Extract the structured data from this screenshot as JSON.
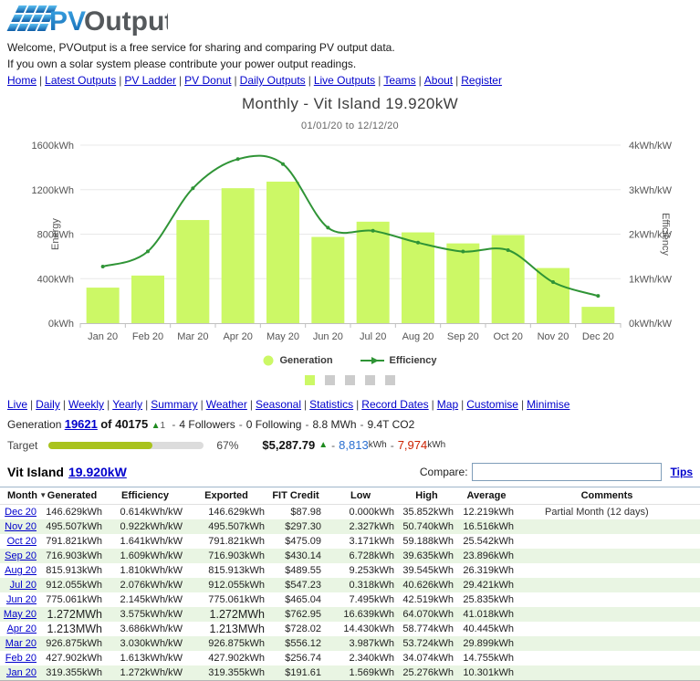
{
  "header": {
    "logo": {
      "icon": "solar-panel-icon",
      "pv": "PV",
      "output": "Output"
    },
    "welcome_line1": "Welcome, PVOutput is a free service for sharing and comparing PV output data.",
    "welcome_line2": "If you own a solar system please contribute your power output readings.",
    "nav": [
      "Home",
      "Latest Outputs",
      "PV Ladder",
      "PV Donut",
      "Daily Outputs",
      "Live Outputs",
      "Teams",
      "About",
      "Register"
    ],
    "nav_separator": "|"
  },
  "chart": {
    "title": "Monthly - Vit Island 19.920kW",
    "subtitle": "01/01/20 to 12/12/20",
    "legend_generation": "Generation",
    "legend_efficiency": "Efficiency",
    "pager_squares": [
      "selected",
      "",
      "",
      "",
      ""
    ]
  },
  "chart_data": {
    "type": "bar+line",
    "categories": [
      "Jan 20",
      "Feb 20",
      "Mar 20",
      "Apr 20",
      "May 20",
      "Jun 20",
      "Jul 20",
      "Aug 20",
      "Sep 20",
      "Oct 20",
      "Nov 20",
      "Dec 20"
    ],
    "series": [
      {
        "name": "Generation",
        "type": "bar",
        "axis": "left",
        "unit": "kWh",
        "values": [
          319.355,
          427.902,
          926.875,
          1213,
          1272,
          775.061,
          912.055,
          815.913,
          716.903,
          791.821,
          495.507,
          146.629
        ]
      },
      {
        "name": "Efficiency",
        "type": "line",
        "axis": "right",
        "unit": "kWh/kW",
        "values": [
          1.272,
          1.613,
          3.03,
          3.686,
          3.575,
          2.145,
          2.076,
          1.81,
          1.609,
          1.641,
          0.922,
          0.614
        ]
      }
    ],
    "ylabel_left": "Energy",
    "ylabel_right": "Efficiency",
    "ylim_left": [
      0,
      1600
    ],
    "ylim_right": [
      0,
      4
    ],
    "y_left_ticks": [
      "0kWh",
      "400kWh",
      "800kWh",
      "1200kWh",
      "1600kWh"
    ],
    "y_right_ticks": [
      "0kWh/kW",
      "1kWh/kW",
      "2kWh/kW",
      "3kWh/kW",
      "4kWh/kW"
    ],
    "grid": true,
    "legend_position": "bottom",
    "colors": {
      "bar": "#ccf866",
      "line": "#2f9436",
      "grid": "#e8e8e8",
      "axis": "#c0c0c0",
      "tick_text": "#555"
    }
  },
  "subnav": [
    "Live",
    "Daily",
    "Weekly",
    "Yearly",
    "Summary",
    "Weather",
    "Seasonal",
    "Statistics",
    "Record Dates",
    "Map",
    "Customise",
    "Minimise"
  ],
  "stats": {
    "prefix": "Generation",
    "rank": "19621",
    "rank_of": "of 40175",
    "up_arrow": "▲",
    "rank_delta": "1",
    "separator": "-",
    "items": [
      "4 Followers",
      "0 Following",
      "8.8 MWh",
      "9.4T CO2"
    ]
  },
  "target": {
    "label": "Target",
    "percent_text": "67%",
    "percent_value": 67,
    "credit": "$5,287.79",
    "up_arrow": "▲",
    "separator": "-",
    "achieved": "8,813",
    "achieved_unit": "kWh",
    "remaining": "7,974",
    "remaining_unit": "kWh",
    "fill_color": "#a9c31d"
  },
  "system": {
    "name": "Vit Island",
    "size": "19.920kW",
    "compare_label": "Compare:",
    "compare_value": "",
    "tips_label": "Tips"
  },
  "table": {
    "columns": [
      "Month",
      "Generated",
      "Efficiency",
      "Exported",
      "FIT Credit",
      "Low",
      "High",
      "Average",
      "Comments"
    ],
    "sort_column": "Month",
    "sort_indicator": "▼",
    "stripe_color": "#e9f5e3",
    "rows": [
      [
        "Dec 20",
        "146.629kWh",
        "0.614kWh/kW",
        "146.629kWh",
        "$87.98",
        "0.000kWh",
        "35.852kWh",
        "12.219kWh",
        "Partial Month (12 days)"
      ],
      [
        "Nov 20",
        "495.507kWh",
        "0.922kWh/kW",
        "495.507kWh",
        "$297.30",
        "2.327kWh",
        "50.740kWh",
        "16.516kWh",
        ""
      ],
      [
        "Oct 20",
        "791.821kWh",
        "1.641kWh/kW",
        "791.821kWh",
        "$475.09",
        "3.171kWh",
        "59.188kWh",
        "25.542kWh",
        ""
      ],
      [
        "Sep 20",
        "716.903kWh",
        "1.609kWh/kW",
        "716.903kWh",
        "$430.14",
        "6.728kWh",
        "39.635kWh",
        "23.896kWh",
        ""
      ],
      [
        "Aug 20",
        "815.913kWh",
        "1.810kWh/kW",
        "815.913kWh",
        "$489.55",
        "9.253kWh",
        "39.545kWh",
        "26.319kWh",
        ""
      ],
      [
        "Jul 20",
        "912.055kWh",
        "2.076kWh/kW",
        "912.055kWh",
        "$547.23",
        "0.318kWh",
        "40.626kWh",
        "29.421kWh",
        ""
      ],
      [
        "Jun 20",
        "775.061kWh",
        "2.145kWh/kW",
        "775.061kWh",
        "$465.04",
        "7.495kWh",
        "42.519kWh",
        "25.835kWh",
        ""
      ],
      [
        "May 20",
        "1.272MWh",
        "3.575kWh/kW",
        "1.272MWh",
        "$762.95",
        "16.639kWh",
        "64.070kWh",
        "41.018kWh",
        ""
      ],
      [
        "Apr 20",
        "1.213MWh",
        "3.686kWh/kW",
        "1.213MWh",
        "$728.02",
        "14.430kWh",
        "58.774kWh",
        "40.445kWh",
        ""
      ],
      [
        "Mar 20",
        "926.875kWh",
        "3.030kWh/kW",
        "926.875kWh",
        "$556.12",
        "3.987kWh",
        "53.724kWh",
        "29.899kWh",
        ""
      ],
      [
        "Feb 20",
        "427.902kWh",
        "1.613kWh/kW",
        "427.902kWh",
        "$256.74",
        "2.340kWh",
        "34.074kWh",
        "14.755kWh",
        ""
      ],
      [
        "Jan 20",
        "319.355kWh",
        "1.272kWh/kW",
        "319.355kWh",
        "$191.61",
        "1.569kWh",
        "25.276kWh",
        "10.301kWh",
        ""
      ]
    ]
  }
}
